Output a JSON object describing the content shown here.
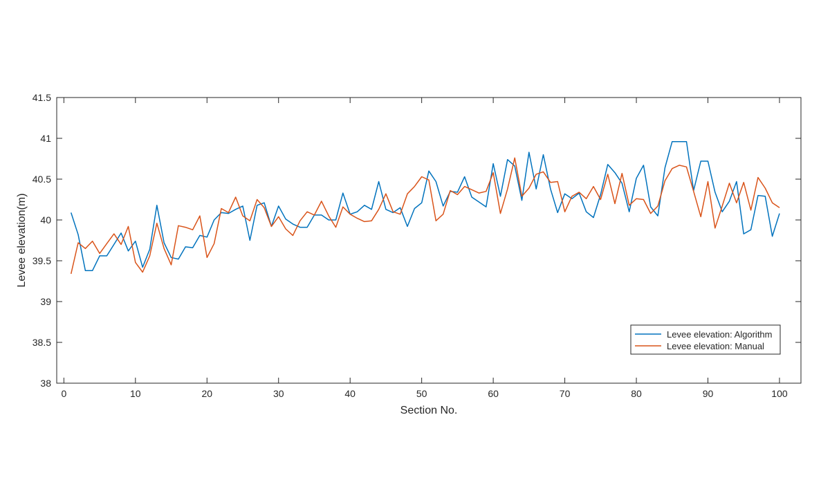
{
  "chart_data": {
    "type": "line",
    "xlabel": "Section No.",
    "ylabel": "Levee elevation(m)",
    "xlim": [
      -1,
      103
    ],
    "ylim": [
      38,
      41.5
    ],
    "xticks": [
      0,
      10,
      20,
      30,
      40,
      50,
      60,
      70,
      80,
      90,
      100
    ],
    "xtick_labels": [
      "0",
      "10",
      "20",
      "30",
      "40",
      "50",
      "60",
      "70",
      "80",
      "90",
      "100"
    ],
    "yticks": [
      38,
      38.5,
      39,
      39.5,
      40,
      40.5,
      41,
      41.5
    ],
    "ytick_labels": [
      "38",
      "38.5",
      "39",
      "39.5",
      "40",
      "40.5",
      "41",
      "41.5"
    ],
    "grid": false,
    "legend_position": "bottom-right",
    "x": [
      1,
      2,
      3,
      4,
      5,
      6,
      7,
      8,
      9,
      10,
      11,
      12,
      13,
      14,
      15,
      16,
      17,
      18,
      19,
      20,
      21,
      22,
      23,
      24,
      25,
      26,
      27,
      28,
      29,
      30,
      31,
      32,
      33,
      34,
      35,
      36,
      37,
      38,
      39,
      40,
      41,
      42,
      43,
      44,
      45,
      46,
      47,
      48,
      49,
      50,
      51,
      52,
      53,
      54,
      55,
      56,
      57,
      58,
      59,
      60,
      61,
      62,
      63,
      64,
      65,
      66,
      67,
      68,
      69,
      70,
      71,
      72,
      73,
      74,
      75,
      76,
      77,
      78,
      79,
      80,
      81,
      82,
      83,
      84,
      85,
      86,
      87,
      88,
      89,
      90,
      91,
      92,
      93,
      94,
      95,
      96,
      97,
      98,
      99,
      100
    ],
    "series": [
      {
        "name": "Levee elevation: Algorithm",
        "color": "#0072BD",
        "values": [
          40.09,
          39.82,
          39.38,
          39.38,
          39.56,
          39.56,
          39.7,
          39.84,
          39.62,
          39.74,
          39.42,
          39.64,
          40.18,
          39.72,
          39.54,
          39.52,
          39.67,
          39.66,
          39.81,
          39.79,
          40.0,
          40.09,
          40.08,
          40.13,
          40.17,
          39.75,
          40.18,
          40.21,
          39.92,
          40.17,
          40.01,
          39.95,
          39.91,
          39.91,
          40.06,
          40.06,
          40.0,
          40.0,
          40.33,
          40.07,
          40.1,
          40.18,
          40.13,
          40.47,
          40.13,
          40.09,
          40.15,
          39.92,
          40.14,
          40.21,
          40.6,
          40.47,
          40.17,
          40.35,
          40.34,
          40.53,
          40.28,
          40.22,
          40.16,
          40.69,
          40.29,
          40.74,
          40.66,
          40.24,
          40.83,
          40.38,
          40.8,
          40.38,
          40.09,
          40.32,
          40.26,
          40.33,
          40.1,
          40.03,
          40.31,
          40.68,
          40.58,
          40.45,
          40.1,
          40.51,
          40.67,
          40.16,
          40.05,
          40.64,
          40.96,
          40.96,
          40.96,
          40.36,
          40.72,
          40.72,
          40.34,
          40.1,
          40.23,
          40.47,
          39.83,
          39.88,
          40.3,
          40.29,
          39.8,
          40.08
        ]
      },
      {
        "name": "Levee elevation: Manual",
        "color": "#D95319",
        "values": [
          39.34,
          39.72,
          39.65,
          39.74,
          39.59,
          39.71,
          39.83,
          39.7,
          39.92,
          39.48,
          39.36,
          39.56,
          39.96,
          39.65,
          39.45,
          39.93,
          39.91,
          39.88,
          40.05,
          39.54,
          39.71,
          40.14,
          40.09,
          40.28,
          40.05,
          39.99,
          40.25,
          40.15,
          39.92,
          40.04,
          39.89,
          39.81,
          39.99,
          40.1,
          40.06,
          40.23,
          40.05,
          39.91,
          40.16,
          40.07,
          40.02,
          39.98,
          39.99,
          40.13,
          40.32,
          40.1,
          40.07,
          40.32,
          40.41,
          40.53,
          40.49,
          39.99,
          40.07,
          40.36,
          40.31,
          40.41,
          40.37,
          40.33,
          40.35,
          40.58,
          40.08,
          40.38,
          40.76,
          40.29,
          40.39,
          40.56,
          40.59,
          40.46,
          40.47,
          40.1,
          40.29,
          40.34,
          40.26,
          40.41,
          40.25,
          40.56,
          40.2,
          40.57,
          40.18,
          40.26,
          40.25,
          40.08,
          40.17,
          40.48,
          40.63,
          40.67,
          40.65,
          40.35,
          40.04,
          40.47,
          39.9,
          40.17,
          40.45,
          40.21,
          40.46,
          40.12,
          40.52,
          40.39,
          40.21,
          40.15
        ]
      }
    ]
  }
}
